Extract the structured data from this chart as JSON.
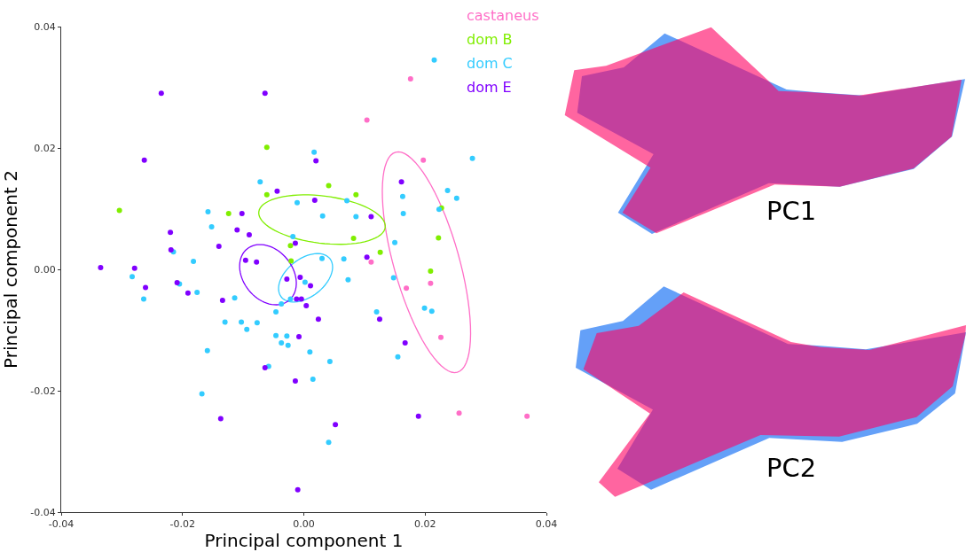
{
  "chart_data": {
    "type": "scatter",
    "xlabel": "Principal component 1",
    "ylabel": "Principal component 2",
    "xlim": [
      -0.04,
      0.04
    ],
    "xticks": [
      -0.04,
      -0.02,
      {
        "value": 0,
        "label": "0.00"
      },
      0.02,
      0.04
    ],
    "ylim": [
      -0.04,
      0.04
    ],
    "yticks": [
      -0.04,
      -0.02,
      {
        "value": 0,
        "label": "0.00"
      },
      0.02,
      0.04
    ],
    "annotations": [
      "PC1",
      "PC2"
    ],
    "series": [
      {
        "name": "castaneus",
        "color": "#ff6ec7",
        "marker": "circle",
        "x": [
          0.0176,
          0.0104,
          0.0197,
          0.0111,
          0.0169,
          0.0209,
          0.0226,
          0.0256,
          0.0368
        ],
        "values": [
          0.0314,
          0.0246,
          0.018,
          0.0012,
          -0.0031,
          -0.0023,
          -0.0112,
          -0.0237,
          -0.0242
        ]
      },
      {
        "name": "dom B",
        "color": "#80ee00",
        "marker": "circle",
        "x": [
          -0.0061,
          -0.0061,
          -0.0304,
          -0.0124,
          -0.0022,
          -0.0021,
          0.0041,
          0.0086,
          0.0227,
          0.0082,
          0.0222,
          0.0126,
          0.0209
        ],
        "values": [
          0.0201,
          0.0123,
          0.0097,
          0.0092,
          0.0039,
          0.0014,
          0.0138,
          0.0123,
          0.0101,
          0.0051,
          0.0052,
          0.0028,
          -0.0003
        ]
      },
      {
        "name": "dom C",
        "color": "#33ccff",
        "marker": "circle",
        "x": [
          -0.0072,
          -0.0011,
          -0.0158,
          -0.0152,
          -0.0018,
          -0.0215,
          -0.0182,
          0.0215,
          0.0017,
          0.0278,
          0.0237,
          0.0252,
          0.0163,
          0.0071,
          0.0223,
          0.0164,
          0.0031,
          0.0086,
          0.015,
          0.003,
          0.0066,
          -0.0283,
          -0.0205,
          -0.0176,
          -0.0264,
          -0.0114,
          0.0002,
          0.0073,
          0.0148,
          -0.0037,
          -0.0022,
          -0.0046,
          -0.013,
          -0.0103,
          -0.0077,
          -0.0094,
          -0.0046,
          -0.0028,
          -0.0037,
          -0.0026,
          -0.0159,
          -0.0058,
          -0.0168,
          0.012,
          0.0199,
          0.0211,
          0.001,
          0.0043,
          0.0155,
          0.0015,
          0.0041
        ],
        "values": [
          0.0144,
          0.011,
          0.0095,
          0.007,
          0.0054,
          0.0029,
          0.0013,
          0.0345,
          0.0193,
          0.0183,
          0.013,
          0.0117,
          0.012,
          0.0113,
          0.0099,
          0.0092,
          0.0088,
          0.0087,
          0.0044,
          0.0018,
          0.0017,
          -0.0012,
          -0.0024,
          -0.0038,
          -0.0049,
          -0.0047,
          -0.0021,
          -0.0017,
          -0.0014,
          -0.0057,
          -0.0049,
          -0.007,
          -0.0087,
          -0.0087,
          -0.0088,
          -0.0099,
          -0.0109,
          -0.011,
          -0.0121,
          -0.0125,
          -0.0134,
          -0.016,
          -0.0205,
          -0.007,
          -0.0064,
          -0.0069,
          -0.0136,
          -0.0152,
          -0.0144,
          -0.0181,
          -0.0285
        ]
      },
      {
        "name": "dom E",
        "color": "#8000ff",
        "marker": "circle",
        "x": [
          -0.0235,
          -0.0064,
          -0.0263,
          -0.0044,
          -0.0102,
          -0.011,
          -0.022,
          -0.009,
          -0.0014,
          -0.014,
          -0.0219,
          -0.0096,
          -0.0078,
          -0.0335,
          -0.0279,
          0.002,
          0.0161,
          0.0018,
          0.0111,
          0.0104,
          -0.0261,
          -0.0209,
          -0.0191,
          -0.0134,
          -0.0028,
          -0.0006,
          0.0011,
          -0.0012,
          -0.0004,
          0.0004,
          -0.0008,
          0.0024,
          0.0125,
          0.0167,
          -0.0064,
          -0.0014,
          -0.0137,
          -0.001,
          0.0189,
          0.0052
        ],
        "values": [
          0.029,
          0.029,
          0.018,
          0.0129,
          0.0092,
          0.0065,
          0.0061,
          0.0057,
          0.0043,
          0.0038,
          0.0032,
          0.0015,
          0.0012,
          0.0003,
          0.0002,
          0.0179,
          0.0144,
          0.0114,
          0.0087,
          0.002,
          -0.003,
          -0.0022,
          -0.0039,
          -0.0051,
          -0.0016,
          -0.0013,
          -0.0027,
          -0.0049,
          -0.0049,
          -0.006,
          -0.0111,
          -0.0082,
          -0.0082,
          -0.0121,
          -0.0162,
          -0.0184,
          -0.0246,
          -0.0363,
          -0.0242,
          -0.0256
        ]
      }
    ]
  }
}
